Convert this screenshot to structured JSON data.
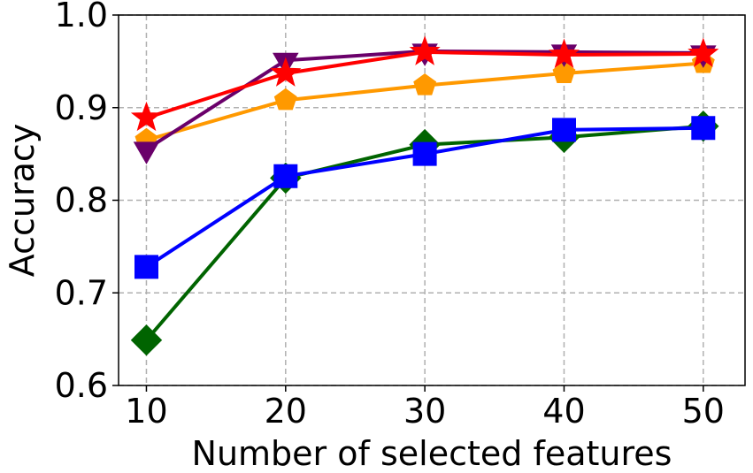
{
  "chart_data": {
    "type": "line",
    "title": "",
    "xlabel": "Number of selected features",
    "ylabel": "Accuracy",
    "x": [
      10,
      20,
      30,
      40,
      50
    ],
    "xticks": [
      "10",
      "20",
      "30",
      "40",
      "50"
    ],
    "yticks": [
      "0.6",
      "0.7",
      "0.8",
      "0.9",
      "1.0"
    ],
    "xlim": [
      8,
      53
    ],
    "ylim": [
      0.6,
      1.0
    ],
    "grid": true,
    "series": [
      {
        "color": "#006400",
        "marker": "diamond",
        "values": [
          0.649,
          0.824,
          0.86,
          0.868,
          0.88
        ]
      },
      {
        "color": "#0000ff",
        "marker": "square",
        "values": [
          0.728,
          0.826,
          0.85,
          0.876,
          0.878
        ]
      },
      {
        "color": "#ff9900",
        "marker": "pentagon",
        "values": [
          0.865,
          0.908,
          0.924,
          0.937,
          0.948
        ]
      },
      {
        "color": "#6a006a",
        "marker": "triangle-down",
        "values": [
          0.855,
          0.951,
          0.961,
          0.96,
          0.959
        ]
      },
      {
        "color": "#ff0000",
        "marker": "star",
        "values": [
          0.889,
          0.937,
          0.96,
          0.957,
          0.958
        ]
      }
    ]
  }
}
